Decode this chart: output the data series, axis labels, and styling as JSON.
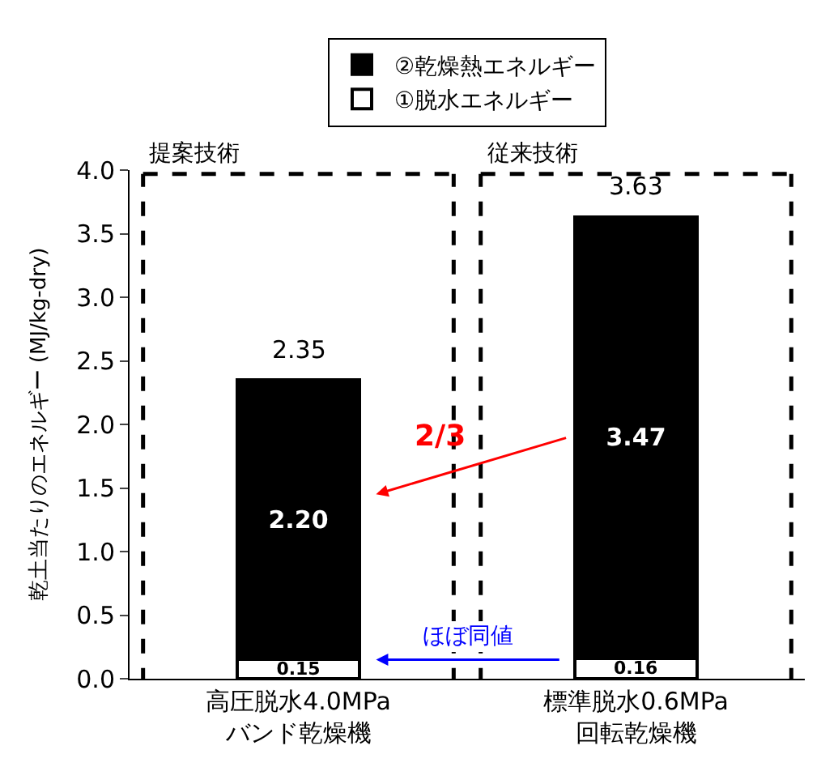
{
  "chart_data": {
    "type": "bar",
    "stacked": true,
    "ylabel": "乾土当たりのエネルギー (MJ/kg-dry)",
    "categories": [
      "高圧脱水4.0MPa\nバンド乾燥機",
      "標準脱水0.6MPa\n回転乾燥機"
    ],
    "series": [
      {
        "name": "①脱水エネルギー",
        "color": "#ffffff",
        "values": [
          0.15,
          0.16
        ],
        "value_labels": [
          "0.15",
          "0.16"
        ]
      },
      {
        "name": "②乾燥熱エネルギー",
        "color": "#000000",
        "values": [
          2.2,
          3.47
        ],
        "value_labels": [
          "2.20",
          "3.47"
        ]
      }
    ],
    "totals": [
      "2.35",
      "3.63"
    ],
    "ylim": [
      0,
      4.0
    ],
    "yticks": [
      {
        "value": 0,
        "label": "0.0"
      },
      {
        "value": 0.5,
        "label": "0.5"
      },
      {
        "value": 1,
        "label": "1.0"
      },
      {
        "value": 1.5,
        "label": "1.5"
      },
      {
        "value": 2,
        "label": "2.0"
      },
      {
        "value": 2.5,
        "label": "2.5"
      },
      {
        "value": 3,
        "label": "3.0"
      },
      {
        "value": 3.5,
        "label": "3.5"
      },
      {
        "value": 4,
        "label": "4.0"
      }
    ],
    "legend": "top",
    "annotations": [
      "提案技術",
      "従来技術",
      "2/3",
      "ほぼ同値"
    ]
  }
}
